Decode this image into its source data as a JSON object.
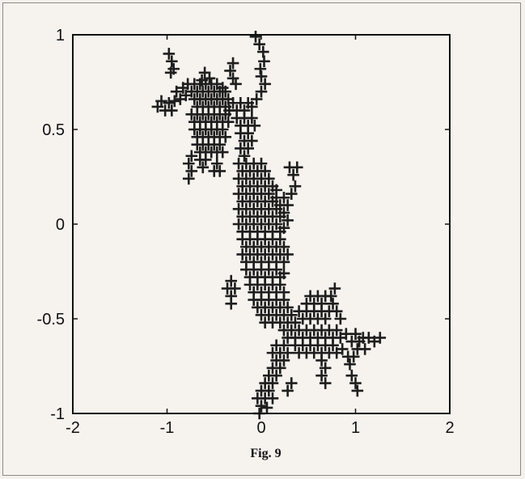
{
  "caption": "Fig. 9",
  "chart_data": {
    "type": "scatter",
    "marker": "plus",
    "marker_color": "#1e1e1e",
    "xlim": [
      -2,
      2
    ],
    "ylim": [
      -1,
      1
    ],
    "xticks": [
      -2,
      -1,
      0,
      1,
      2
    ],
    "yticks": [
      -1,
      -0.5,
      0,
      0.5,
      1
    ],
    "xtick_labels": [
      "-2",
      "-1",
      "0",
      "1",
      "2"
    ],
    "ytick_labels": [
      "-1",
      "-0.5",
      "0",
      "0.5",
      "1"
    ],
    "grid": false,
    "title": "",
    "xlabel": "",
    "ylabel": "",
    "points": [
      [
        -0.98,
        0.9
      ],
      [
        -0.95,
        0.86
      ],
      [
        -0.93,
        0.82
      ],
      [
        -0.96,
        0.8
      ],
      [
        -0.6,
        0.8
      ],
      [
        -0.63,
        0.76
      ],
      [
        -0.55,
        0.77
      ],
      [
        -0.3,
        0.85
      ],
      [
        -0.33,
        0.81
      ],
      [
        -0.3,
        0.77
      ],
      [
        -0.27,
        0.74
      ],
      [
        -0.06,
        0.99
      ],
      [
        -0.02,
        0.95
      ],
      [
        0.02,
        0.91
      ],
      [
        0.03,
        0.86
      ],
      [
        -0.01,
        0.82
      ],
      [
        0.0,
        0.78
      ],
      [
        -1.1,
        0.62
      ],
      [
        -1.06,
        0.65
      ],
      [
        -1.02,
        0.6
      ],
      [
        -0.98,
        0.64
      ],
      [
        -0.95,
        0.6
      ],
      [
        -0.92,
        0.65
      ],
      [
        -0.9,
        0.7
      ],
      [
        -0.86,
        0.66
      ],
      [
        -0.83,
        0.72
      ],
      [
        -0.8,
        0.68
      ],
      [
        -0.78,
        0.74
      ],
      [
        -0.74,
        0.7
      ],
      [
        -0.71,
        0.74
      ],
      [
        -0.68,
        0.7
      ],
      [
        -0.65,
        0.74
      ],
      [
        -0.62,
        0.7
      ],
      [
        -0.59,
        0.74
      ],
      [
        -0.56,
        0.7
      ],
      [
        -0.53,
        0.74
      ],
      [
        -0.5,
        0.7
      ],
      [
        -0.47,
        0.74
      ],
      [
        -0.44,
        0.7
      ],
      [
        -0.41,
        0.72
      ],
      [
        -0.38,
        0.7
      ],
      [
        -0.71,
        0.66
      ],
      [
        -0.68,
        0.62
      ],
      [
        -0.65,
        0.66
      ],
      [
        -0.62,
        0.62
      ],
      [
        -0.59,
        0.66
      ],
      [
        -0.56,
        0.62
      ],
      [
        -0.53,
        0.66
      ],
      [
        -0.5,
        0.62
      ],
      [
        -0.47,
        0.66
      ],
      [
        -0.44,
        0.62
      ],
      [
        -0.41,
        0.66
      ],
      [
        -0.38,
        0.62
      ],
      [
        -0.35,
        0.66
      ],
      [
        -0.74,
        0.58
      ],
      [
        -0.71,
        0.54
      ],
      [
        -0.68,
        0.58
      ],
      [
        -0.65,
        0.54
      ],
      [
        -0.62,
        0.58
      ],
      [
        -0.59,
        0.54
      ],
      [
        -0.56,
        0.58
      ],
      [
        -0.53,
        0.54
      ],
      [
        -0.5,
        0.58
      ],
      [
        -0.47,
        0.54
      ],
      [
        -0.44,
        0.58
      ],
      [
        -0.41,
        0.54
      ],
      [
        -0.38,
        0.58
      ],
      [
        -0.35,
        0.54
      ],
      [
        -0.71,
        0.5
      ],
      [
        -0.68,
        0.46
      ],
      [
        -0.65,
        0.5
      ],
      [
        -0.62,
        0.46
      ],
      [
        -0.59,
        0.5
      ],
      [
        -0.56,
        0.46
      ],
      [
        -0.53,
        0.5
      ],
      [
        -0.5,
        0.46
      ],
      [
        -0.47,
        0.5
      ],
      [
        -0.44,
        0.46
      ],
      [
        -0.41,
        0.5
      ],
      [
        -0.38,
        0.46
      ],
      [
        -0.68,
        0.42
      ],
      [
        -0.65,
        0.38
      ],
      [
        -0.62,
        0.42
      ],
      [
        -0.59,
        0.38
      ],
      [
        -0.56,
        0.42
      ],
      [
        -0.53,
        0.38
      ],
      [
        -0.5,
        0.42
      ],
      [
        -0.47,
        0.38
      ],
      [
        -0.44,
        0.42
      ],
      [
        -0.41,
        0.38
      ],
      [
        -0.74,
        0.36
      ],
      [
        -0.77,
        0.32
      ],
      [
        -0.74,
        0.28
      ],
      [
        -0.77,
        0.24
      ],
      [
        -0.65,
        0.34
      ],
      [
        -0.62,
        0.3
      ],
      [
        -0.59,
        0.34
      ],
      [
        -0.47,
        0.32
      ],
      [
        -0.5,
        0.28
      ],
      [
        -0.44,
        0.28
      ],
      [
        -0.34,
        0.6
      ],
      [
        -0.3,
        0.64
      ],
      [
        -0.26,
        0.6
      ],
      [
        -0.22,
        0.64
      ],
      [
        -0.18,
        0.6
      ],
      [
        -0.14,
        0.64
      ],
      [
        -0.1,
        0.62
      ],
      [
        -0.05,
        0.66
      ],
      [
        0.0,
        0.7
      ],
      [
        0.04,
        0.74
      ],
      [
        -0.26,
        0.56
      ],
      [
        -0.22,
        0.52
      ],
      [
        -0.18,
        0.56
      ],
      [
        -0.14,
        0.52
      ],
      [
        -0.1,
        0.56
      ],
      [
        -0.07,
        0.52
      ],
      [
        -0.22,
        0.48
      ],
      [
        -0.18,
        0.44
      ],
      [
        -0.14,
        0.48
      ],
      [
        -0.1,
        0.44
      ],
      [
        -0.22,
        0.4
      ],
      [
        -0.18,
        0.36
      ],
      [
        -0.14,
        0.4
      ],
      [
        -0.24,
        0.32
      ],
      [
        -0.2,
        0.28
      ],
      [
        -0.16,
        0.32
      ],
      [
        -0.12,
        0.28
      ],
      [
        -0.08,
        0.32
      ],
      [
        -0.04,
        0.28
      ],
      [
        0.0,
        0.32
      ],
      [
        0.04,
        0.28
      ],
      [
        -0.24,
        0.24
      ],
      [
        -0.2,
        0.2
      ],
      [
        -0.16,
        0.24
      ],
      [
        -0.12,
        0.2
      ],
      [
        -0.08,
        0.24
      ],
      [
        -0.04,
        0.2
      ],
      [
        0.0,
        0.24
      ],
      [
        0.04,
        0.2
      ],
      [
        0.08,
        0.24
      ],
      [
        0.12,
        0.2
      ],
      [
        0.16,
        0.18
      ],
      [
        -0.24,
        0.16
      ],
      [
        -0.2,
        0.12
      ],
      [
        -0.16,
        0.16
      ],
      [
        -0.12,
        0.12
      ],
      [
        -0.08,
        0.16
      ],
      [
        -0.04,
        0.12
      ],
      [
        0.0,
        0.16
      ],
      [
        0.04,
        0.12
      ],
      [
        0.08,
        0.16
      ],
      [
        0.12,
        0.12
      ],
      [
        0.16,
        0.14
      ],
      [
        0.2,
        0.1
      ],
      [
        0.24,
        0.14
      ],
      [
        0.28,
        0.1
      ],
      [
        0.32,
        0.16
      ],
      [
        0.36,
        0.2
      ],
      [
        0.34,
        0.26
      ],
      [
        0.3,
        0.3
      ],
      [
        0.38,
        0.3
      ],
      [
        -0.24,
        0.08
      ],
      [
        -0.2,
        0.04
      ],
      [
        -0.16,
        0.08
      ],
      [
        -0.12,
        0.04
      ],
      [
        -0.08,
        0.08
      ],
      [
        -0.04,
        0.04
      ],
      [
        0.0,
        0.08
      ],
      [
        0.04,
        0.04
      ],
      [
        0.08,
        0.08
      ],
      [
        0.12,
        0.04
      ],
      [
        0.16,
        0.08
      ],
      [
        0.2,
        0.04
      ],
      [
        0.24,
        0.06
      ],
      [
        0.28,
        0.02
      ],
      [
        -0.24,
        0.0
      ],
      [
        -0.2,
        -0.04
      ],
      [
        -0.16,
        0.0
      ],
      [
        -0.12,
        -0.04
      ],
      [
        -0.08,
        0.0
      ],
      [
        -0.04,
        -0.04
      ],
      [
        0.0,
        0.0
      ],
      [
        0.04,
        -0.04
      ],
      [
        0.08,
        0.0
      ],
      [
        0.12,
        -0.04
      ],
      [
        0.16,
        0.0
      ],
      [
        0.2,
        -0.04
      ],
      [
        0.24,
        -0.02
      ],
      [
        -0.2,
        -0.08
      ],
      [
        -0.16,
        -0.12
      ],
      [
        -0.12,
        -0.08
      ],
      [
        -0.08,
        -0.12
      ],
      [
        -0.04,
        -0.08
      ],
      [
        0.0,
        -0.12
      ],
      [
        0.04,
        -0.08
      ],
      [
        0.08,
        -0.12
      ],
      [
        0.12,
        -0.08
      ],
      [
        0.16,
        -0.12
      ],
      [
        0.2,
        -0.08
      ],
      [
        0.24,
        -0.12
      ],
      [
        0.28,
        -0.16
      ],
      [
        -0.2,
        -0.16
      ],
      [
        -0.16,
        -0.2
      ],
      [
        -0.12,
        -0.16
      ],
      [
        -0.08,
        -0.2
      ],
      [
        -0.04,
        -0.16
      ],
      [
        0.0,
        -0.2
      ],
      [
        0.04,
        -0.16
      ],
      [
        0.08,
        -0.2
      ],
      [
        0.12,
        -0.16
      ],
      [
        0.16,
        -0.2
      ],
      [
        0.2,
        -0.16
      ],
      [
        0.24,
        -0.2
      ],
      [
        -0.36,
        -0.34
      ],
      [
        -0.32,
        -0.38
      ],
      [
        -0.28,
        -0.34
      ],
      [
        -0.32,
        -0.3
      ],
      [
        -0.32,
        -0.42
      ],
      [
        -0.16,
        -0.24
      ],
      [
        -0.12,
        -0.28
      ],
      [
        -0.08,
        -0.24
      ],
      [
        -0.04,
        -0.28
      ],
      [
        0.0,
        -0.24
      ],
      [
        0.04,
        -0.28
      ],
      [
        0.08,
        -0.24
      ],
      [
        0.12,
        -0.28
      ],
      [
        0.16,
        -0.24
      ],
      [
        0.2,
        -0.28
      ],
      [
        0.24,
        -0.26
      ],
      [
        -0.12,
        -0.32
      ],
      [
        -0.08,
        -0.36
      ],
      [
        -0.04,
        -0.32
      ],
      [
        0.0,
        -0.36
      ],
      [
        0.04,
        -0.32
      ],
      [
        0.08,
        -0.36
      ],
      [
        0.12,
        -0.32
      ],
      [
        0.16,
        -0.36
      ],
      [
        0.2,
        -0.32
      ],
      [
        0.24,
        -0.36
      ],
      [
        -0.08,
        -0.4
      ],
      [
        -0.04,
        -0.44
      ],
      [
        0.0,
        -0.4
      ],
      [
        0.04,
        -0.44
      ],
      [
        0.08,
        -0.4
      ],
      [
        0.12,
        -0.44
      ],
      [
        0.16,
        -0.4
      ],
      [
        0.2,
        -0.44
      ],
      [
        0.24,
        -0.4
      ],
      [
        0.28,
        -0.44
      ],
      [
        0.0,
        -0.48
      ],
      [
        0.04,
        -0.52
      ],
      [
        0.08,
        -0.48
      ],
      [
        0.12,
        -0.52
      ],
      [
        0.16,
        -0.48
      ],
      [
        0.2,
        -0.52
      ],
      [
        0.24,
        -0.48
      ],
      [
        0.28,
        -0.52
      ],
      [
        0.32,
        -0.48
      ],
      [
        0.36,
        -0.52
      ],
      [
        0.4,
        -0.46
      ],
      [
        0.44,
        -0.5
      ],
      [
        0.48,
        -0.46
      ],
      [
        0.52,
        -0.5
      ],
      [
        0.56,
        -0.46
      ],
      [
        0.6,
        -0.5
      ],
      [
        0.64,
        -0.46
      ],
      [
        0.68,
        -0.5
      ],
      [
        0.72,
        -0.46
      ],
      [
        0.76,
        -0.42
      ],
      [
        0.8,
        -0.46
      ],
      [
        0.84,
        -0.5
      ],
      [
        0.48,
        -0.42
      ],
      [
        0.52,
        -0.38
      ],
      [
        0.56,
        -0.42
      ],
      [
        0.6,
        -0.38
      ],
      [
        0.64,
        -0.42
      ],
      [
        0.68,
        -0.38
      ],
      [
        0.74,
        -0.38
      ],
      [
        0.78,
        -0.34
      ],
      [
        0.24,
        -0.56
      ],
      [
        0.28,
        -0.6
      ],
      [
        0.32,
        -0.56
      ],
      [
        0.36,
        -0.6
      ],
      [
        0.4,
        -0.56
      ],
      [
        0.44,
        -0.6
      ],
      [
        0.48,
        -0.56
      ],
      [
        0.52,
        -0.6
      ],
      [
        0.56,
        -0.56
      ],
      [
        0.6,
        -0.6
      ],
      [
        0.64,
        -0.56
      ],
      [
        0.68,
        -0.6
      ],
      [
        0.72,
        -0.56
      ],
      [
        0.76,
        -0.6
      ],
      [
        0.8,
        -0.56
      ],
      [
        0.84,
        -0.6
      ],
      [
        0.9,
        -0.58
      ],
      [
        0.96,
        -0.62
      ],
      [
        1.0,
        -0.58
      ],
      [
        1.04,
        -0.62
      ],
      [
        1.08,
        -0.6
      ],
      [
        1.14,
        -0.6
      ],
      [
        1.2,
        -0.62
      ],
      [
        1.26,
        -0.6
      ],
      [
        1.1,
        -0.66
      ],
      [
        1.02,
        -0.66
      ],
      [
        0.36,
        -0.64
      ],
      [
        0.4,
        -0.68
      ],
      [
        0.44,
        -0.64
      ],
      [
        0.48,
        -0.68
      ],
      [
        0.52,
        -0.64
      ],
      [
        0.56,
        -0.68
      ],
      [
        0.6,
        -0.64
      ],
      [
        0.64,
        -0.68
      ],
      [
        0.68,
        -0.64
      ],
      [
        0.72,
        -0.68
      ],
      [
        0.76,
        -0.64
      ],
      [
        0.8,
        -0.68
      ],
      [
        0.86,
        -0.66
      ],
      [
        0.92,
        -0.7
      ],
      [
        0.98,
        -0.7
      ],
      [
        0.94,
        -0.74
      ],
      [
        0.96,
        -0.8
      ],
      [
        0.16,
        -0.64
      ],
      [
        0.12,
        -0.68
      ],
      [
        0.16,
        -0.72
      ],
      [
        0.12,
        -0.76
      ],
      [
        0.16,
        -0.8
      ],
      [
        0.2,
        -0.76
      ],
      [
        0.24,
        -0.72
      ],
      [
        0.28,
        -0.68
      ],
      [
        0.2,
        -0.68
      ],
      [
        0.24,
        -0.64
      ],
      [
        0.64,
        -0.72
      ],
      [
        0.68,
        -0.76
      ],
      [
        0.64,
        -0.8
      ],
      [
        0.68,
        -0.84
      ],
      [
        0.12,
        -0.84
      ],
      [
        0.08,
        -0.8
      ],
      [
        0.04,
        -0.84
      ],
      [
        0.08,
        -0.88
      ],
      [
        0.12,
        -0.92
      ],
      [
        0.04,
        -0.92
      ],
      [
        0.0,
        -0.88
      ],
      [
        0.0,
        -0.96
      ],
      [
        -0.04,
        -0.92
      ],
      [
        -0.02,
        -1.0
      ],
      [
        0.06,
        -0.97
      ],
      [
        0.28,
        -0.88
      ],
      [
        0.32,
        -0.84
      ],
      [
        1.0,
        -0.84
      ],
      [
        1.02,
        -0.88
      ]
    ]
  }
}
